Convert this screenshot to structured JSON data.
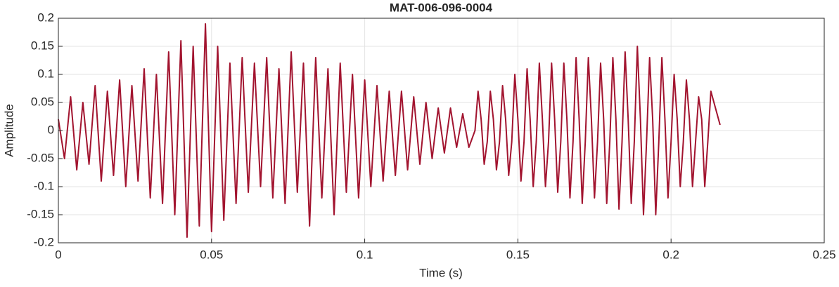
{
  "chart_data": {
    "type": "line",
    "title": "MAT-006-096-0004",
    "xlabel": "Time (s)",
    "ylabel": "Amplitude",
    "color": "#a2142f",
    "grid": true,
    "xlim": [
      0,
      0.25
    ],
    "xticks": [
      0,
      0.05,
      0.1,
      0.15,
      0.2,
      0.25
    ],
    "ylim": [
      -0.2,
      0.2
    ],
    "yticks": [
      -0.2,
      -0.15,
      -0.1,
      -0.05,
      0,
      0.05,
      0.1,
      0.15,
      0.2
    ],
    "x": [
      0,
      0.002,
      0.004,
      0.006,
      0.008,
      0.01,
      0.012,
      0.014,
      0.016,
      0.018,
      0.02,
      0.022,
      0.024,
      0.026,
      0.028,
      0.03,
      0.032,
      0.034,
      0.036,
      0.038,
      0.04,
      0.042,
      0.044,
      0.046,
      0.048,
      0.05,
      0.052,
      0.054,
      0.056,
      0.058,
      0.06,
      0.062,
      0.064,
      0.066,
      0.068,
      0.07,
      0.072,
      0.074,
      0.076,
      0.078,
      0.08,
      0.082,
      0.084,
      0.086,
      0.088,
      0.09,
      0.092,
      0.094,
      0.096,
      0.098,
      0.1,
      0.102,
      0.104,
      0.106,
      0.108,
      0.11,
      0.112,
      0.114,
      0.116,
      0.118,
      0.12,
      0.122,
      0.124,
      0.126,
      0.128,
      0.13,
      0.132,
      0.134,
      0.136,
      0.137,
      0.138,
      0.139,
      0.14,
      0.141,
      0.142,
      0.143,
      0.144,
      0.145,
      0.146,
      0.147,
      0.148,
      0.149,
      0.15,
      0.151,
      0.152,
      0.153,
      0.154,
      0.155,
      0.156,
      0.157,
      0.158,
      0.159,
      0.16,
      0.161,
      0.162,
      0.163,
      0.164,
      0.165,
      0.166,
      0.167,
      0.168,
      0.169,
      0.17,
      0.171,
      0.172,
      0.173,
      0.174,
      0.175,
      0.176,
      0.177,
      0.178,
      0.179,
      0.18,
      0.181,
      0.182,
      0.183,
      0.184,
      0.185,
      0.186,
      0.187,
      0.188,
      0.189,
      0.19,
      0.191,
      0.192,
      0.193,
      0.194,
      0.195,
      0.196,
      0.197,
      0.198,
      0.199,
      0.2,
      0.201,
      0.202,
      0.203,
      0.204,
      0.205,
      0.206,
      0.207,
      0.208,
      0.209,
      0.21,
      0.211,
      0.212,
      0.213,
      0.214,
      0.215,
      0.216
    ],
    "values": [
      0.02,
      -0.05,
      0.06,
      -0.07,
      0.05,
      -0.06,
      0.08,
      -0.09,
      0.07,
      -0.08,
      0.09,
      -0.1,
      0.08,
      -0.09,
      0.11,
      -0.12,
      0.1,
      -0.13,
      0.14,
      -0.15,
      0.16,
      -0.19,
      0.15,
      -0.17,
      0.19,
      -0.18,
      0.15,
      -0.16,
      0.12,
      -0.13,
      0.13,
      -0.11,
      0.12,
      -0.1,
      0.13,
      -0.12,
      0.11,
      -0.13,
      0.14,
      -0.11,
      0.12,
      -0.17,
      0.13,
      -0.12,
      0.11,
      -0.15,
      0.12,
      -0.11,
      0.1,
      -0.12,
      0.09,
      -0.1,
      0.08,
      -0.09,
      0.07,
      -0.08,
      0.07,
      -0.07,
      0.06,
      -0.06,
      0.05,
      -0.05,
      0.04,
      -0.04,
      0.04,
      -0.03,
      0.03,
      -0.03,
      0,
      0.07,
      0.02,
      -0.06,
      -0.02,
      0.07,
      0.02,
      -0.07,
      -0.02,
      0.08,
      0.02,
      -0.08,
      -0.02,
      0.1,
      0.02,
      -0.09,
      -0.02,
      0.11,
      0.02,
      -0.1,
      -0.02,
      0.12,
      0.02,
      -0.1,
      -0.02,
      0.12,
      0.02,
      -0.11,
      -0.02,
      0.12,
      0.02,
      -0.12,
      -0.02,
      0.13,
      0.02,
      -0.13,
      -0.02,
      0.13,
      0.02,
      -0.12,
      -0.02,
      0.12,
      0.02,
      -0.13,
      -0.02,
      0.13,
      0.02,
      -0.14,
      -0.02,
      0.14,
      0.02,
      -0.13,
      -0.02,
      0.15,
      0.02,
      -0.15,
      -0.02,
      0.13,
      0.02,
      -0.15,
      -0.02,
      0.13,
      0.02,
      -0.12,
      -0.02,
      0.1,
      0.02,
      -0.1,
      -0.02,
      0.09,
      0.02,
      -0.1,
      -0.02,
      0.06,
      0.02,
      -0.1,
      -0.02,
      0.07,
      0.05,
      0.03,
      0.01
    ]
  }
}
